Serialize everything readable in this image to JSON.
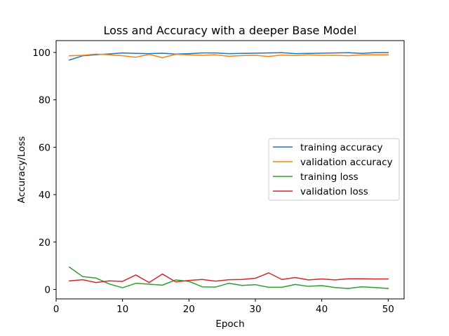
{
  "chart_data": {
    "type": "line",
    "title": "Loss and Accuracy with a deeper Base Model",
    "xlabel": "Epoch",
    "ylabel": "Accuracy/Loss",
    "xlim": [
      0,
      52.4
    ],
    "ylim": [
      -4,
      105
    ],
    "xticks": [
      0,
      10,
      20,
      30,
      40,
      50
    ],
    "yticks": [
      0,
      20,
      40,
      60,
      80,
      100
    ],
    "grid": false,
    "legend_position": "center-right",
    "x": [
      2,
      4,
      6,
      8,
      10,
      12,
      14,
      16,
      18,
      20,
      22,
      24,
      26,
      28,
      30,
      32,
      34,
      36,
      38,
      40,
      42,
      44,
      46,
      48,
      50
    ],
    "series": [
      {
        "name": "training accuracy",
        "color": "#1f77b4",
        "values": [
          96.8,
          98.6,
          99.0,
          99.4,
          99.8,
          99.6,
          99.5,
          99.7,
          99.3,
          99.5,
          99.8,
          99.8,
          99.5,
          99.6,
          99.7,
          99.8,
          99.9,
          99.5,
          99.6,
          99.7,
          99.8,
          99.9,
          99.6,
          99.9,
          99.9
        ]
      },
      {
        "name": "validation accuracy",
        "color": "#ff7f0e",
        "values": [
          98.6,
          98.8,
          99.3,
          99.0,
          98.6,
          98.0,
          99.2,
          97.8,
          99.2,
          99.0,
          98.8,
          99.0,
          98.4,
          98.7,
          98.8,
          98.3,
          98.9,
          98.7,
          99.0,
          98.8,
          98.8,
          98.6,
          99.0,
          99.0,
          99.0
        ]
      },
      {
        "name": "training loss",
        "color": "#2ca02c",
        "values": [
          9.4,
          5.4,
          4.8,
          2.3,
          0.7,
          2.6,
          2.2,
          1.8,
          4.0,
          3.4,
          1.1,
          1.0,
          2.6,
          1.7,
          2.0,
          0.9,
          0.9,
          2.1,
          1.3,
          1.6,
          0.8,
          0.4,
          1.1,
          0.8,
          0.4
        ]
      },
      {
        "name": "validation loss",
        "color": "#d62728",
        "values": [
          3.6,
          4.1,
          2.9,
          3.6,
          3.4,
          6.1,
          2.9,
          6.5,
          3.2,
          3.8,
          4.2,
          3.5,
          4.1,
          4.2,
          4.7,
          7.0,
          4.2,
          5.0,
          4.0,
          4.4,
          4.0,
          4.5,
          4.5,
          4.4,
          4.4
        ]
      }
    ]
  }
}
